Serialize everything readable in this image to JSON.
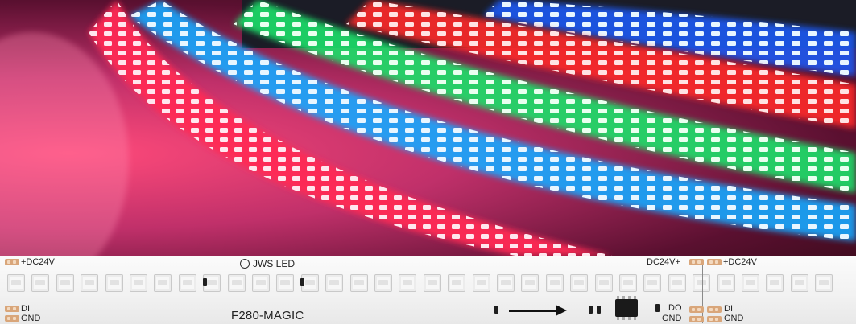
{
  "strip": {
    "left_top_label": "+DC24V",
    "left_bottom_labels": [
      "DI",
      "GND"
    ],
    "brand": "JWS LED",
    "model": "F280-MAGIC",
    "right_top_labels": [
      "DC24V+",
      "+DC24V"
    ],
    "right_bottom_labels": [
      "DO",
      "GND",
      "DI",
      "GND"
    ]
  },
  "colors": {
    "pad": "#d9a67a",
    "chip": "#1a1a1a",
    "strip_bg": "#f4f4f4"
  },
  "icons": [
    "logo-ring-icon",
    "direction-arrow-icon"
  ]
}
